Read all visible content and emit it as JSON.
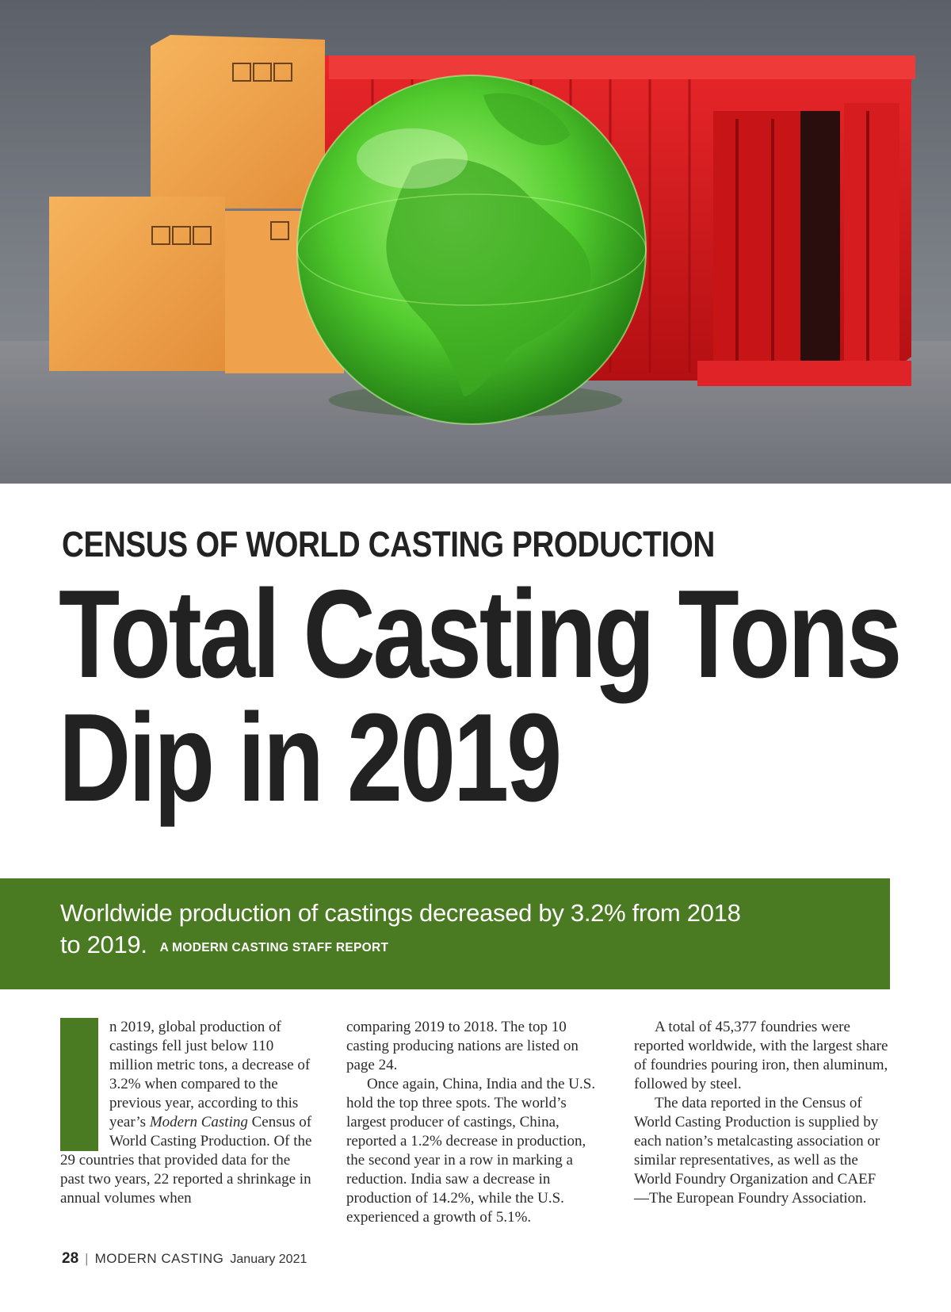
{
  "hero": {
    "description_icons": [
      "fragile-glass-icon",
      "keep-dry-umbrella-icon",
      "handle-with-care-icon",
      "this-way-up-icon"
    ],
    "colors": {
      "box": "#f0a04a",
      "container": "#d8191c",
      "globe": "#5fd13a",
      "background": "#6c7078"
    }
  },
  "kicker": "CENSUS OF WORLD CASTING PRODUCTION",
  "headline": {
    "line1": "Total Casting Tons",
    "line2": "Dip in 2019"
  },
  "deck": {
    "text_line1": "Worldwide production of castings decreased by 3.2% from 2018",
    "text_line2": "to 2019.",
    "byline": "A MODERN CASTING STAFF REPORT"
  },
  "body": {
    "col1": {
      "dropcap": "I",
      "p1_a": "n 2019, global production of castings fell just below 110 million metric tons, a decrease of 3.2% when compared to the previous year, according to this year’s ",
      "p1_em": "Modern Casting",
      "p1_b": " Census of World Casting Production. Of the 29 countries that provided data for the past two years, 22 reported a shrinkage in annual volumes when"
    },
    "col2": {
      "p1": "comparing 2019 to 2018. The top 10 casting producing nations are listed on page 24.",
      "p2": "Once again, China, India and the U.S. hold the top three spots. The world’s largest producer of castings, China, reported a 1.2% decrease in production, the second year in a row in marking a reduction. India saw a decrease in production of 14.2%, while the U.S. experienced a growth of 5.1%."
    },
    "col3": {
      "p1": "A total of 45,377 foundries were reported worldwide, with the largest share of foundries pouring iron, then aluminum, followed by steel.",
      "p2": "The data reported in the Census of World Casting Production is supplied by each nation’s metalcasting association or similar representatives, as well as the World Foundry Organization and CAEF—The European Foundry Association."
    }
  },
  "folio": {
    "page": "28",
    "separator": "|",
    "magazine": "MODERN CASTING",
    "date": "January 2021"
  },
  "colors": {
    "accent_green": "#4a7a22",
    "text": "#222222"
  }
}
